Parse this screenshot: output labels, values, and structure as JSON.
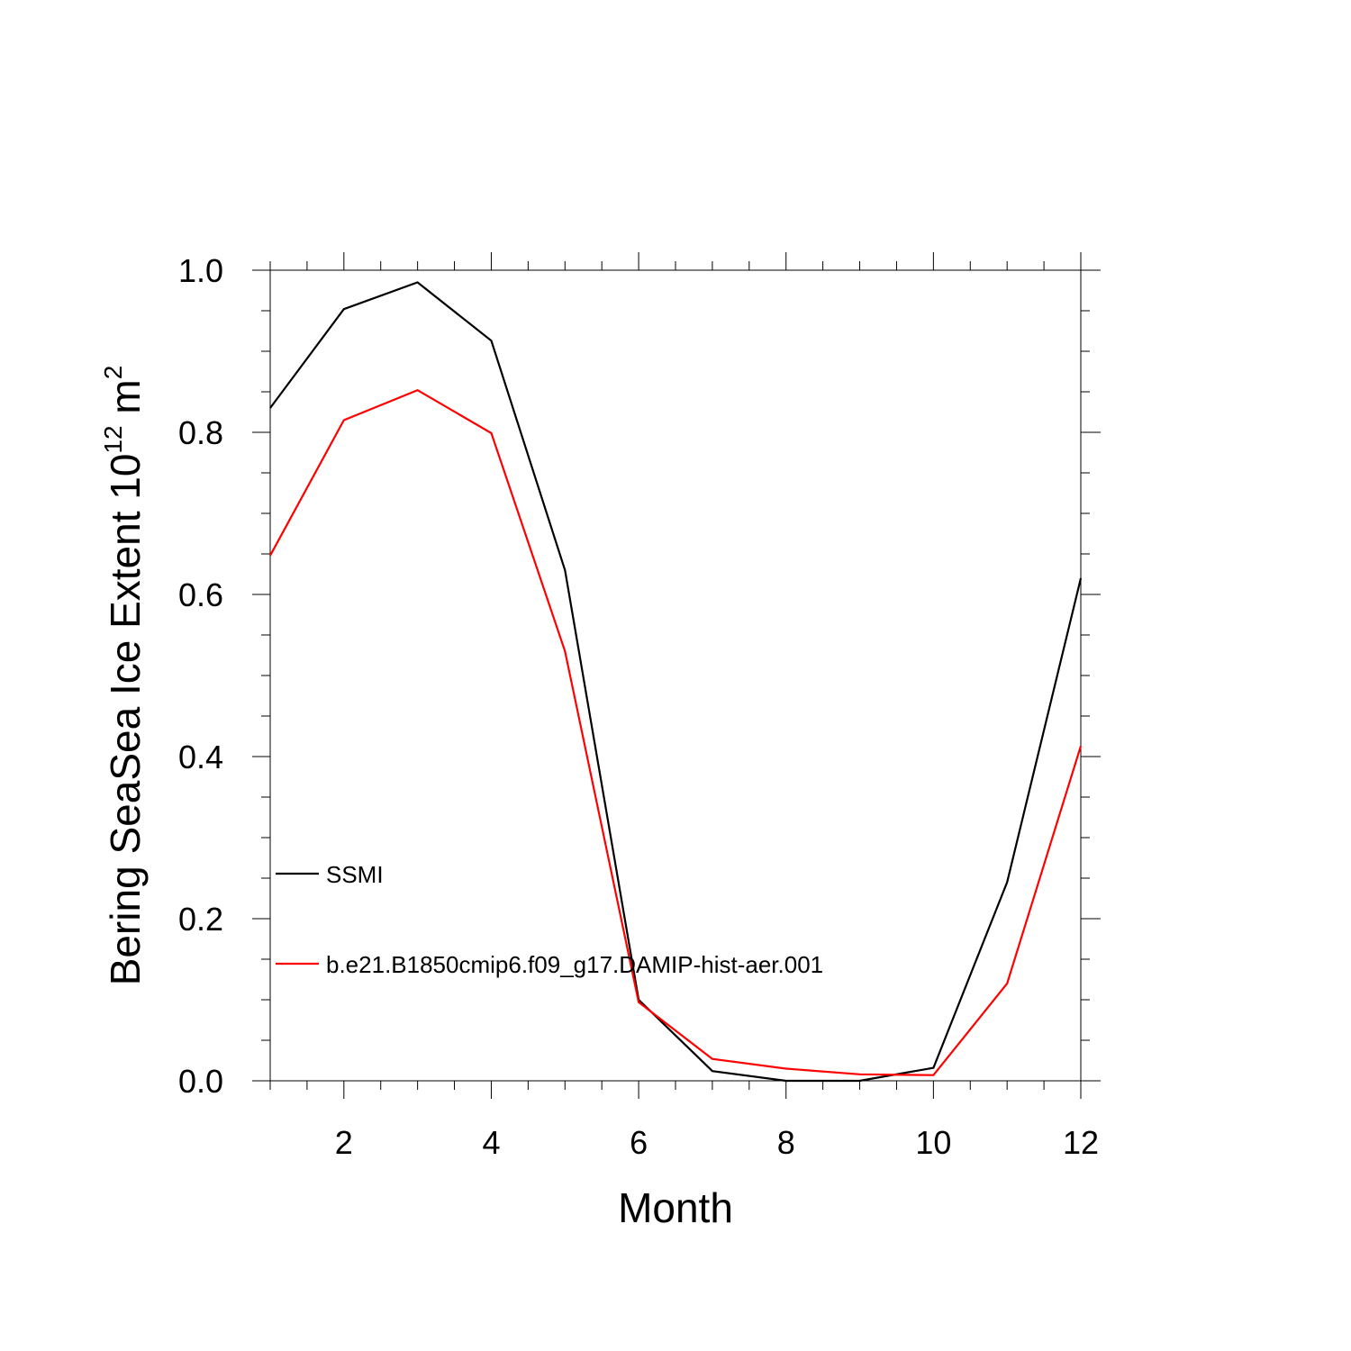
{
  "chart_data": {
    "type": "line",
    "xlabel": "Month",
    "ylabel_main": "Bering SeaSea Ice Extent 10",
    "ylabel_sup": "12",
    "ylabel_unit": " m",
    "ylabel_unit_sup": "2",
    "xlim": [
      1,
      12
    ],
    "ylim": [
      0.0,
      1.0
    ],
    "x_ticks": [
      2,
      4,
      6,
      8,
      10,
      12
    ],
    "x_tick_labels": [
      "2",
      "4",
      "6",
      "8",
      "10",
      "12"
    ],
    "y_ticks": [
      0.0,
      0.2,
      0.4,
      0.6,
      0.8,
      1.0
    ],
    "y_tick_labels": [
      "0.0",
      "0.2",
      "0.4",
      "0.6",
      "0.8",
      "1.0"
    ],
    "grid": false,
    "legend_position": "lower-left",
    "x": [
      1,
      2,
      3,
      4,
      5,
      6,
      7,
      8,
      9,
      10,
      11,
      12
    ],
    "series": [
      {
        "name": "SSMI",
        "color": "#000000",
        "values": [
          0.83,
          0.952,
          0.985,
          0.913,
          0.63,
          0.1,
          0.012,
          0.0,
          0.0,
          0.016,
          0.245,
          0.62
        ]
      },
      {
        "name": "b.e21.B1850cmip6.f09_g17.DAMIP-hist-aer.001",
        "color": "#ff0000",
        "values": [
          0.648,
          0.815,
          0.852,
          0.799,
          0.53,
          0.097,
          0.027,
          0.015,
          0.008,
          0.007,
          0.12,
          0.413
        ]
      }
    ]
  }
}
